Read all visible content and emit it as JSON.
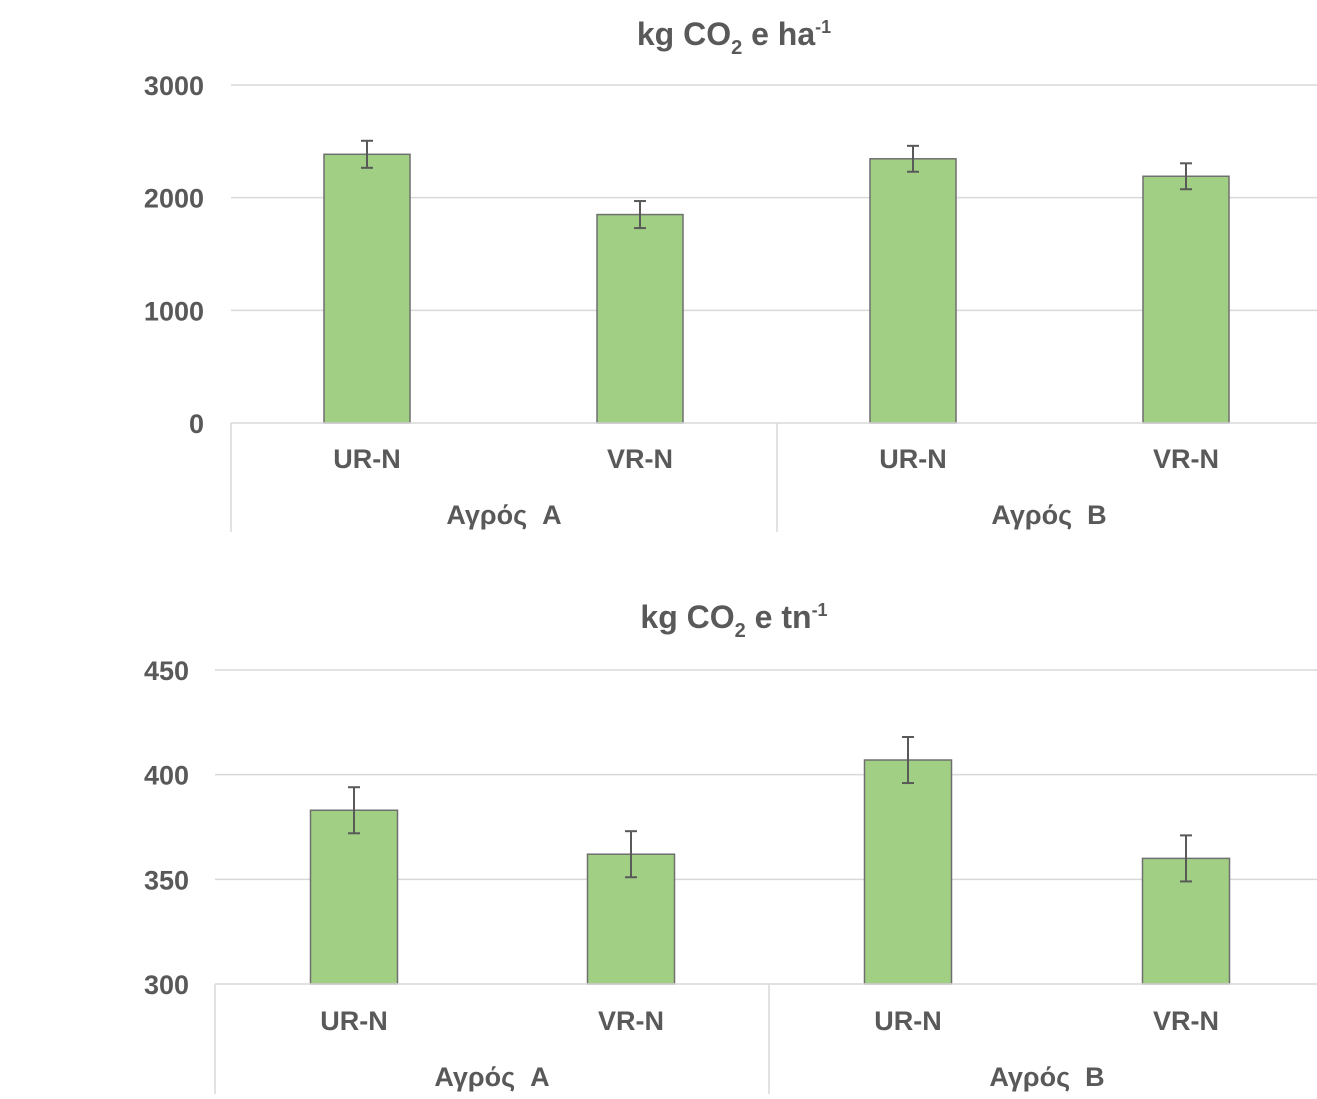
{
  "chart_data": [
    {
      "type": "bar",
      "title": {
        "main": "kg CO",
        "sub": "2",
        "after": " e ha",
        "sup": "-1"
      },
      "categories": [
        "UR-N",
        "VR-N",
        "UR-N",
        "VR-N"
      ],
      "groups": [
        "Αγρός  A",
        "Αγρός  B"
      ],
      "values": [
        2385,
        1850,
        2345,
        2190
      ],
      "errors": [
        120,
        120,
        115,
        115
      ],
      "ylim": [
        0,
        3000
      ],
      "yticks": [
        "0",
        "1000",
        "2000",
        "3000"
      ],
      "ytick_values": [
        0,
        1000,
        2000,
        3000
      ],
      "grid": true,
      "colors": {
        "bar": "#a1d084",
        "bar_border": "#6f6f6f",
        "error": "#595959",
        "grid": "#d9d9d9",
        "text": "#595959"
      }
    },
    {
      "type": "bar",
      "title": {
        "main": "kg CO",
        "sub": "2",
        "after": " e tn",
        "sup": "-1"
      },
      "categories": [
        "UR-N",
        "VR-N",
        "UR-N",
        "VR-N"
      ],
      "groups": [
        "Αγρός  A",
        "Αγρός  B"
      ],
      "values": [
        383,
        362,
        407,
        360
      ],
      "errors": [
        11,
        11,
        11,
        11
      ],
      "ylim": [
        300,
        450
      ],
      "yticks": [
        "300",
        "350",
        "400",
        "450"
      ],
      "ytick_values": [
        300,
        350,
        400,
        450
      ],
      "grid": true,
      "colors": {
        "bar": "#a1d084",
        "bar_border": "#6f6f6f",
        "error": "#595959",
        "grid": "#d9d9d9",
        "text": "#595959"
      }
    }
  ]
}
